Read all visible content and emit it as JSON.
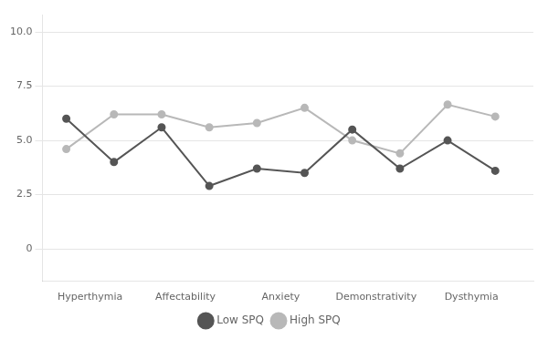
{
  "chart_data": {
    "type": "line",
    "x": [
      0,
      1,
      2,
      3,
      4,
      5,
      6,
      7,
      8,
      9
    ],
    "xlim": [
      -0.5,
      9.8
    ],
    "xticks": [
      {
        "value": 0.5,
        "label": "Hyperthymia"
      },
      {
        "value": 2.5,
        "label": "Affectability"
      },
      {
        "value": 4.5,
        "label": "Anxiety"
      },
      {
        "value": 6.5,
        "label": "Demonstrativity"
      },
      {
        "value": 8.5,
        "label": "Dysthymia"
      }
    ],
    "ylim": [
      -1.5,
      10.8
    ],
    "yticks": [
      0,
      2.5,
      {
        "value": 5.0,
        "label": "5.0"
      },
      7.5,
      {
        "value": 10.0,
        "label": "10.0"
      }
    ],
    "series": [
      {
        "name": "Low SPQ",
        "color": "#555555",
        "marker": "circle",
        "values": [
          6.0,
          4.0,
          5.6,
          2.9,
          3.7,
          3.5,
          5.5,
          3.7,
          5.0,
          3.6
        ]
      },
      {
        "name": "High SPQ",
        "color": "#b8b8b8",
        "marker": "circle",
        "values": [
          4.6,
          6.2,
          6.2,
          5.6,
          5.8,
          6.5,
          5.0,
          4.4,
          6.65,
          6.1
        ]
      }
    ],
    "grid": "y",
    "legend": "bottom"
  }
}
